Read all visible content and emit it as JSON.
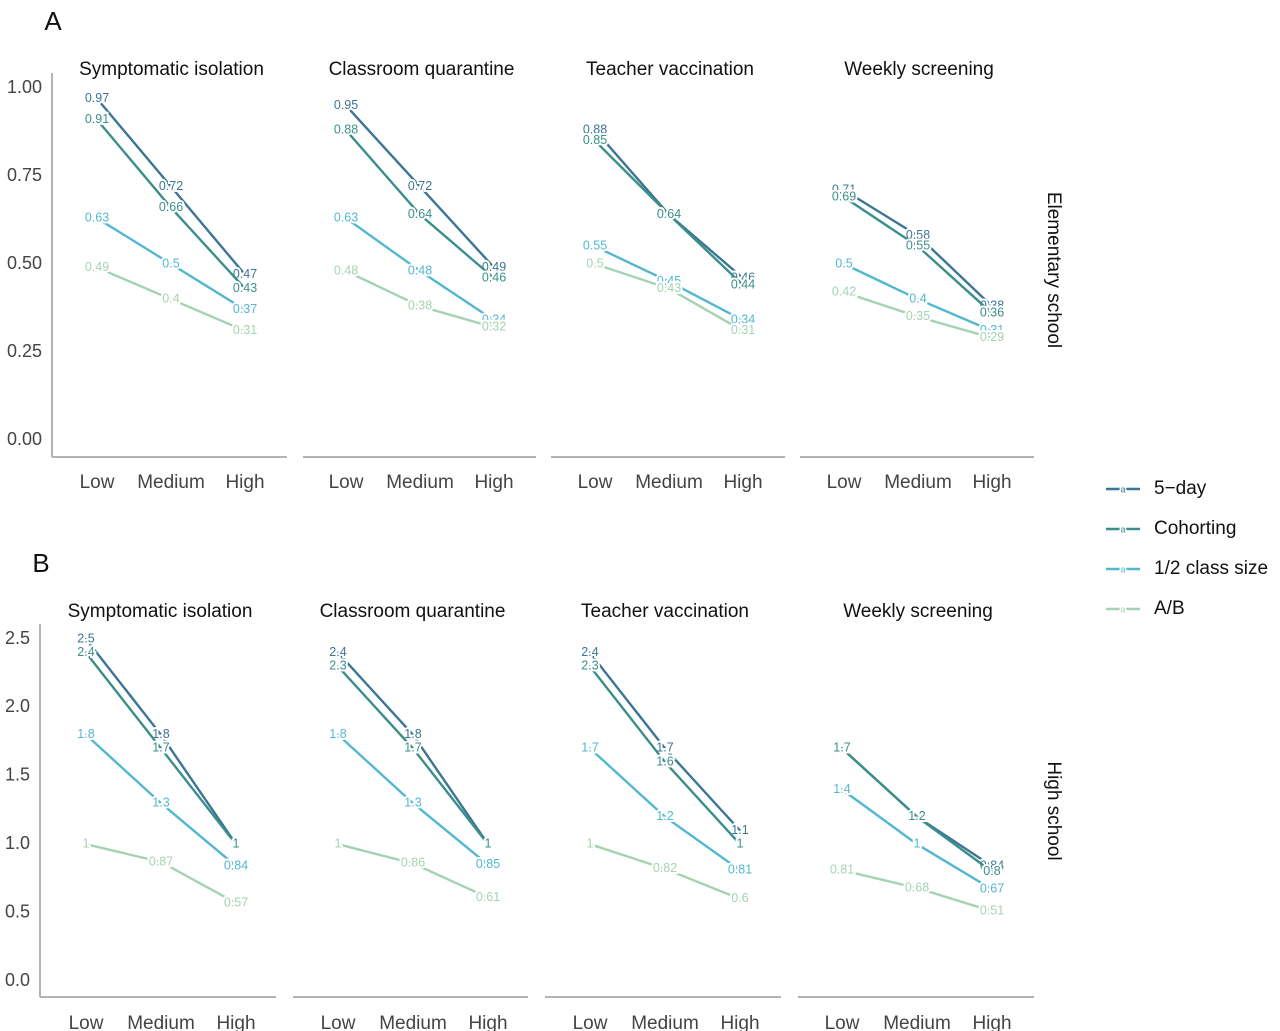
{
  "series_colors": {
    "5-day": "#3d7597",
    "Cohorting": "#3a8f8a",
    "1/2 class size": "#52b8cf",
    "A/B": "#a4d3b3"
  },
  "chart_data": [
    {
      "panel": "A",
      "type": "line",
      "row_label": "Elementary school",
      "x_categories": [
        "Low",
        "Medium",
        "High"
      ],
      "ylim": [
        0,
        1.0
      ],
      "y_ticks": [
        "0.00",
        "0.25",
        "0.50",
        "0.75",
        "1.00"
      ],
      "facets": [
        {
          "title": "Symptomatic isolation",
          "series": [
            {
              "name": "5-day",
              "values": [
                0.97,
                0.72,
                0.47
              ],
              "labels": [
                "0.97",
                "0.72",
                "0.47"
              ]
            },
            {
              "name": "Cohorting",
              "values": [
                0.91,
                0.66,
                0.43
              ],
              "labels": [
                "0.91",
                "0.66",
                "0.43"
              ]
            },
            {
              "name": "1/2 class size",
              "values": [
                0.63,
                0.5,
                0.37
              ],
              "labels": [
                "0.63",
                "0.5",
                "0.37"
              ]
            },
            {
              "name": "A/B",
              "values": [
                0.49,
                0.4,
                0.31
              ],
              "labels": [
                "0.49",
                "0.4",
                "0.31"
              ]
            }
          ]
        },
        {
          "title": "Classroom quarantine",
          "series": [
            {
              "name": "5-day",
              "values": [
                0.95,
                0.72,
                0.49
              ],
              "labels": [
                "0.95",
                "0.72",
                "0.49"
              ]
            },
            {
              "name": "Cohorting",
              "values": [
                0.88,
                0.64,
                0.46
              ],
              "labels": [
                "0.88",
                "0.64",
                "0.46"
              ]
            },
            {
              "name": "1/2 class size",
              "values": [
                0.63,
                0.48,
                0.34
              ],
              "labels": [
                "0.63",
                "0.48",
                "0.34"
              ]
            },
            {
              "name": "A/B",
              "values": [
                0.48,
                0.38,
                0.32
              ],
              "labels": [
                "0.48",
                "0.38",
                "0.32"
              ]
            }
          ]
        },
        {
          "title": "Teacher vaccination",
          "series": [
            {
              "name": "5-day",
              "values": [
                0.88,
                0.64,
                0.46
              ],
              "labels": [
                "0.88",
                "0.64",
                "0.46"
              ]
            },
            {
              "name": "Cohorting",
              "values": [
                0.85,
                0.64,
                0.44
              ],
              "labels": [
                "0.85",
                "0.64",
                "0.44"
              ]
            },
            {
              "name": "1/2 class size",
              "values": [
                0.55,
                0.45,
                0.34
              ],
              "labels": [
                "0.55",
                "0.45",
                "0.34"
              ]
            },
            {
              "name": "A/B",
              "values": [
                0.5,
                0.43,
                0.31
              ],
              "labels": [
                "0.5",
                "0.43",
                "0.31"
              ]
            }
          ]
        },
        {
          "title": "Weekly screening",
          "series": [
            {
              "name": "5-day",
              "values": [
                0.71,
                0.58,
                0.38
              ],
              "labels": [
                "0.71",
                "0.58",
                "0.38"
              ]
            },
            {
              "name": "Cohorting",
              "values": [
                0.69,
                0.55,
                0.36
              ],
              "labels": [
                "0.69",
                "0.55",
                "0.36"
              ]
            },
            {
              "name": "1/2 class size",
              "values": [
                0.5,
                0.4,
                0.31
              ],
              "labels": [
                "0.5",
                "0.4",
                "0.31"
              ]
            },
            {
              "name": "A/B",
              "values": [
                0.42,
                0.35,
                0.29
              ],
              "labels": [
                "0.42",
                "0.35",
                "0.29"
              ]
            }
          ]
        }
      ]
    },
    {
      "panel": "B",
      "type": "line",
      "row_label": "High school",
      "x_categories": [
        "Low",
        "Medium",
        "High"
      ],
      "ylim": [
        0,
        2.5
      ],
      "y_ticks": [
        "0.0",
        "0.5",
        "1.0",
        "1.5",
        "2.0",
        "2.5"
      ],
      "facets": [
        {
          "title": "Symptomatic isolation",
          "series": [
            {
              "name": "5-day",
              "values": [
                2.5,
                1.8,
                1.0
              ],
              "labels": [
                "2.5",
                "1.8",
                "1"
              ]
            },
            {
              "name": "Cohorting",
              "values": [
                2.4,
                1.7,
                1.0
              ],
              "labels": [
                "2.4",
                "1.7",
                "1"
              ]
            },
            {
              "name": "1/2 class size",
              "values": [
                1.8,
                1.3,
                0.84
              ],
              "labels": [
                "1.8",
                "1.3",
                "0.84"
              ]
            },
            {
              "name": "A/B",
              "values": [
                1.0,
                0.87,
                0.57
              ],
              "labels": [
                "1",
                "0.87",
                "0.57"
              ]
            }
          ]
        },
        {
          "title": "Classroom quarantine",
          "series": [
            {
              "name": "5-day",
              "values": [
                2.4,
                1.8,
                1.0
              ],
              "labels": [
                "2.4",
                "1.8",
                "1"
              ]
            },
            {
              "name": "Cohorting",
              "values": [
                2.3,
                1.7,
                1.0
              ],
              "labels": [
                "2.3",
                "1.7",
                "1"
              ]
            },
            {
              "name": "1/2 class size",
              "values": [
                1.8,
                1.3,
                0.85
              ],
              "labels": [
                "1.8",
                "1.3",
                "0.85"
              ]
            },
            {
              "name": "A/B",
              "values": [
                1.0,
                0.86,
                0.61
              ],
              "labels": [
                "1",
                "0.86",
                "0.61"
              ]
            }
          ]
        },
        {
          "title": "Teacher vaccination",
          "series": [
            {
              "name": "5-day",
              "values": [
                2.4,
                1.7,
                1.1
              ],
              "labels": [
                "2.4",
                "1.7",
                "1.1"
              ]
            },
            {
              "name": "Cohorting",
              "values": [
                2.3,
                1.6,
                1.0
              ],
              "labels": [
                "2.3",
                "1.6",
                "1"
              ]
            },
            {
              "name": "1/2 class size",
              "values": [
                1.7,
                1.2,
                0.81
              ],
              "labels": [
                "1.7",
                "1.2",
                "0.81"
              ]
            },
            {
              "name": "A/B",
              "values": [
                1.0,
                0.82,
                0.6
              ],
              "labels": [
                "1",
                "0.82",
                "0.6"
              ]
            }
          ]
        },
        {
          "title": "Weekly screening",
          "series": [
            {
              "name": "5-day",
              "values": [
                1.7,
                1.2,
                0.84
              ],
              "labels": [
                "1.7",
                "1.2",
                "0.84"
              ]
            },
            {
              "name": "Cohorting",
              "values": [
                1.7,
                1.2,
                0.8
              ],
              "labels": [
                "1.7",
                "1.2",
                "0.8"
              ]
            },
            {
              "name": "1/2 class size",
              "values": [
                1.4,
                1.0,
                0.67
              ],
              "labels": [
                "1.4",
                "1",
                "0.67"
              ]
            },
            {
              "name": "A/B",
              "values": [
                0.81,
                0.68,
                0.51
              ],
              "labels": [
                "0.81",
                "0.68",
                "0.51"
              ]
            }
          ]
        }
      ]
    }
  ],
  "legend": {
    "placement": "right",
    "key_glyph": "a",
    "items": [
      "5−day",
      "Cohorting",
      "1/2 class size",
      "A/B"
    ]
  }
}
